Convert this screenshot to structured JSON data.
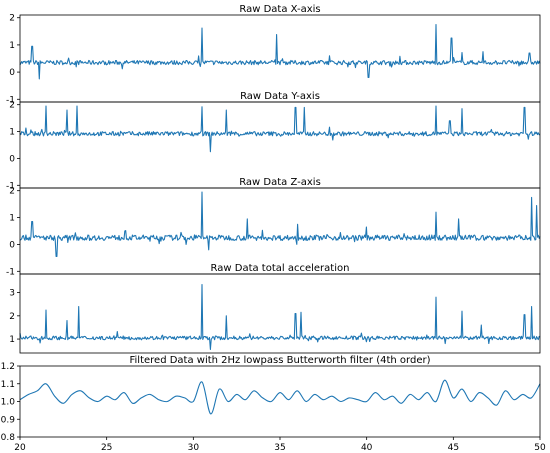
{
  "chart_data": [
    {
      "type": "line",
      "title": "Raw Data X-axis",
      "xlim": [
        20,
        50
      ],
      "ylim": [
        -1.1,
        2.1
      ],
      "yticks": [
        -1,
        0,
        1,
        2
      ],
      "baseline": 0.35,
      "noise": 0.08,
      "spikes": [
        [
          20.7,
          0.95
        ],
        [
          21.1,
          -0.25
        ],
        [
          30.5,
          1.62
        ],
        [
          34.8,
          1.38
        ],
        [
          40.1,
          -0.2
        ],
        [
          44.0,
          1.75
        ],
        [
          44.9,
          1.25
        ],
        [
          45.5,
          0.72
        ],
        [
          46.7,
          0.75
        ],
        [
          49.4,
          0.7
        ]
      ],
      "series": [
        {
          "color": "#1f77b4"
        }
      ]
    },
    {
      "type": "line",
      "title": "Raw Data Y-axis",
      "xlim": [
        20,
        50
      ],
      "ylim": [
        -1.1,
        2.1
      ],
      "yticks": [
        -1,
        0,
        1,
        2
      ],
      "baseline": 0.92,
      "noise": 0.08,
      "spikes": [
        [
          21.5,
          1.95
        ],
        [
          22.7,
          1.8
        ],
        [
          23.3,
          1.95
        ],
        [
          30.5,
          1.92
        ],
        [
          31.0,
          0.25
        ],
        [
          31.9,
          1.8
        ],
        [
          35.9,
          1.9
        ],
        [
          36.4,
          1.9
        ],
        [
          44.0,
          1.95
        ],
        [
          44.8,
          1.4
        ],
        [
          45.5,
          1.85
        ],
        [
          49.1,
          1.9
        ]
      ],
      "series": [
        {
          "color": "#1f77b4"
        }
      ]
    },
    {
      "type": "line",
      "title": "Raw Data Z-axis",
      "xlim": [
        20,
        50
      ],
      "ylim": [
        -1.1,
        2.1
      ],
      "yticks": [
        -1,
        0,
        1,
        2
      ],
      "baseline": 0.25,
      "noise": 0.1,
      "spikes": [
        [
          20.7,
          0.85
        ],
        [
          22.1,
          -0.45
        ],
        [
          30.5,
          1.95
        ],
        [
          30.9,
          -0.2
        ],
        [
          33.1,
          0.95
        ],
        [
          36.0,
          0.75
        ],
        [
          40.0,
          0.65
        ],
        [
          44.0,
          1.2
        ],
        [
          45.3,
          0.95
        ],
        [
          49.5,
          1.75
        ],
        [
          49.8,
          1.45
        ]
      ],
      "series": [
        {
          "color": "#1f77b4"
        }
      ]
    },
    {
      "type": "line",
      "title": "Raw Data total acceleration",
      "xlim": [
        20,
        50
      ],
      "ylim": [
        0.4,
        3.8
      ],
      "yticks": [
        1,
        2,
        3
      ],
      "baseline": 1.05,
      "noise": 0.08,
      "spikes": [
        [
          21.5,
          2.25
        ],
        [
          22.7,
          1.8
        ],
        [
          23.4,
          2.4
        ],
        [
          30.5,
          3.35
        ],
        [
          31.0,
          0.55
        ],
        [
          31.9,
          2.0
        ],
        [
          35.9,
          2.1
        ],
        [
          36.2,
          2.15
        ],
        [
          44.0,
          2.8
        ],
        [
          45.5,
          2.2
        ],
        [
          46.6,
          1.6
        ],
        [
          49.1,
          2.05
        ],
        [
          49.5,
          2.4
        ]
      ],
      "series": [
        {
          "color": "#1f77b4"
        }
      ]
    },
    {
      "type": "line",
      "title": "Filtered Data with 2Hz lowpass Butterworth filter (4th order)",
      "xlim": [
        20,
        50
      ],
      "ylim": [
        0.8,
        1.2
      ],
      "yticks": [
        0.8,
        0.9,
        1.0,
        1.1,
        1.2
      ],
      "xticks": [
        20,
        25,
        30,
        35,
        40,
        45,
        50
      ],
      "x": [
        20,
        20.5,
        21,
        21.5,
        22,
        22.5,
        23,
        23.5,
        24,
        24.5,
        25,
        25.5,
        26,
        26.5,
        27,
        27.5,
        28,
        28.5,
        29,
        29.5,
        30,
        30.5,
        31,
        31.5,
        32,
        32.5,
        33,
        33.5,
        34,
        34.5,
        35,
        35.5,
        36,
        36.5,
        37,
        37.5,
        38,
        38.5,
        39,
        39.5,
        40,
        40.5,
        41,
        41.5,
        42,
        42.5,
        43,
        43.5,
        44,
        44.5,
        45,
        45.5,
        46,
        46.5,
        47,
        47.5,
        48,
        48.5,
        49,
        49.5,
        50
      ],
      "values": [
        1.01,
        1.04,
        1.06,
        1.1,
        1.03,
        0.99,
        1.04,
        1.06,
        1.02,
        1.0,
        1.03,
        1.01,
        1.05,
        0.99,
        1.02,
        1.04,
        1.01,
        1.0,
        1.03,
        1.02,
        1.0,
        1.11,
        0.93,
        1.07,
        1.0,
        1.04,
        1.01,
        1.06,
        1.02,
        1.0,
        1.05,
        1.01,
        1.06,
        1.0,
        1.04,
        1.01,
        1.03,
        1.0,
        1.02,
        1.01,
        1.0,
        1.05,
        1.01,
        1.03,
        0.99,
        1.04,
        1.01,
        1.05,
        1.0,
        1.12,
        1.02,
        1.07,
        1.0,
        1.05,
        1.02,
        0.98,
        1.06,
        1.01,
        1.04,
        1.02,
        1.1
      ],
      "series": [
        {
          "color": "#1f77b4"
        }
      ]
    }
  ]
}
